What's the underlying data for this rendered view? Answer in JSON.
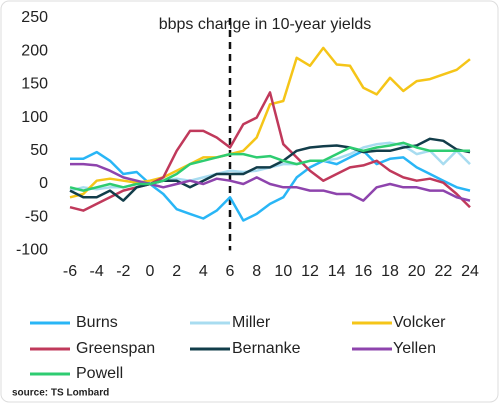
{
  "chart_data": {
    "type": "line",
    "title": "bbps change in 10-year yields",
    "x": [
      -6,
      -5,
      -4,
      -3,
      -2,
      -1,
      0,
      1,
      2,
      3,
      4,
      5,
      6,
      7,
      8,
      9,
      10,
      11,
      12,
      13,
      14,
      15,
      16,
      17,
      18,
      19,
      20,
      21,
      22,
      23,
      24
    ],
    "xlim": [
      -6.5,
      24.5
    ],
    "xticks": [
      -6,
      -4,
      -2,
      0,
      2,
      4,
      6,
      8,
      10,
      12,
      14,
      16,
      18,
      20,
      22,
      24
    ],
    "ylim": [
      -100,
      250
    ],
    "yticks": [
      -100,
      -50,
      0,
      50,
      100,
      150,
      200,
      250
    ],
    "vline": 6,
    "series": [
      {
        "name": "Burns",
        "color": "#29b6f6",
        "values": [
          38,
          38,
          48,
          35,
          15,
          18,
          0,
          -15,
          -38,
          -45,
          -52,
          -40,
          -20,
          -55,
          -45,
          -30,
          -20,
          10,
          25,
          35,
          30,
          40,
          50,
          30,
          38,
          40,
          25,
          15,
          5,
          -5,
          -10
        ]
      },
      {
        "name": "Miller",
        "color": "#a8dcf0",
        "values": [
          -10,
          -5,
          -8,
          -5,
          -5,
          0,
          0,
          5,
          8,
          5,
          10,
          15,
          20,
          18,
          20,
          25,
          30,
          30,
          35,
          35,
          38,
          45,
          55,
          60,
          62,
          58,
          45,
          50,
          30,
          50,
          30
        ]
      },
      {
        "name": "Volcker",
        "color": "#f5c518",
        "values": [
          -20,
          -15,
          5,
          8,
          5,
          2,
          5,
          10,
          20,
          30,
          40,
          40,
          45,
          50,
          70,
          120,
          125,
          190,
          178,
          205,
          180,
          178,
          145,
          135,
          160,
          140,
          155,
          158,
          165,
          172,
          188
        ]
      },
      {
        "name": "Greenspan",
        "color": "#c0395b",
        "values": [
          -35,
          -40,
          -30,
          -20,
          -10,
          -5,
          0,
          10,
          50,
          80,
          80,
          70,
          55,
          90,
          100,
          138,
          60,
          40,
          20,
          5,
          15,
          25,
          28,
          35,
          20,
          10,
          5,
          8,
          2,
          -15,
          -35
        ]
      },
      {
        "name": "Bernanke",
        "color": "#123d4a",
        "values": [
          -10,
          -20,
          -20,
          -10,
          -25,
          -5,
          0,
          5,
          5,
          -5,
          5,
          15,
          15,
          15,
          25,
          25,
          35,
          50,
          55,
          57,
          58,
          55,
          48,
          50,
          50,
          55,
          58,
          68,
          65,
          52,
          48
        ]
      },
      {
        "name": "Yellen",
        "color": "#8e44ad",
        "values": [
          30,
          30,
          28,
          20,
          10,
          5,
          0,
          -5,
          0,
          5,
          0,
          8,
          5,
          0,
          10,
          0,
          -5,
          -5,
          -10,
          -10,
          -15,
          -15,
          -25,
          -5,
          0,
          -5,
          -5,
          -10,
          -10,
          -20,
          -25
        ]
      },
      {
        "name": "Powell",
        "color": "#2ecc71",
        "values": [
          -5,
          -10,
          -5,
          0,
          -5,
          0,
          0,
          5,
          15,
          30,
          35,
          40,
          45,
          45,
          40,
          42,
          35,
          30,
          35,
          35,
          45,
          55,
          50,
          55,
          58,
          62,
          55,
          50,
          50,
          50,
          50
        ]
      }
    ],
    "source": "source: TS Lombard"
  }
}
